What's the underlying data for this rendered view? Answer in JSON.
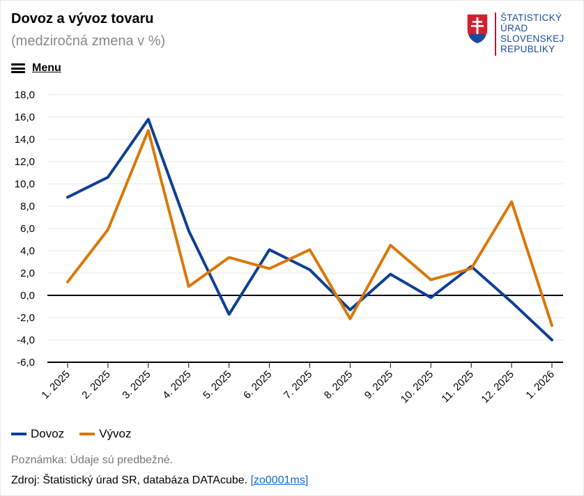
{
  "header": {
    "title": "Dovoz a vývoz tovaru",
    "subtitle": "(medziročná zmena v %)"
  },
  "logo": {
    "line1": "ŠTATISTICKÝ",
    "line2": "ÚRAD",
    "line3": "SLOVENSKEJ",
    "line4": "REPUBLIKY"
  },
  "menu": {
    "label": "Menu"
  },
  "colors": {
    "dovoz": "#0d3f94",
    "vyvoz": "#d97708",
    "grid": "#e6e6e6",
    "axis": "#000000"
  },
  "chart_data": {
    "type": "line",
    "title": "Dovoz a vývoz tovaru",
    "subtitle": "(medziročná zmena v %)",
    "categories": [
      "1. 2025",
      "2. 2025",
      "3. 2025",
      "4. 2025",
      "5. 2025",
      "6. 2025",
      "7. 2025",
      "8. 2025",
      "9. 2025",
      "10. 2025",
      "11. 2025",
      "12. 2025",
      "1. 2026"
    ],
    "series": [
      {
        "name": "Dovoz",
        "values": [
          8.8,
          10.6,
          15.8,
          5.8,
          -1.7,
          4.1,
          2.3,
          -1.3,
          1.9,
          -0.2,
          2.6,
          -0.6,
          -4.0
        ]
      },
      {
        "name": "Vývoz",
        "values": [
          1.2,
          5.9,
          14.8,
          0.8,
          3.4,
          2.4,
          4.1,
          -2.1,
          4.5,
          1.4,
          2.4,
          8.4,
          -2.7
        ]
      }
    ],
    "ylim": [
      -6,
      18
    ],
    "yticks": [
      -6,
      -4,
      -2,
      0,
      2,
      4,
      6,
      8,
      10,
      12,
      14,
      16,
      18
    ],
    "ytick_labels": [
      "-6,0",
      "-4,0",
      "-2,0",
      "0,0",
      "2,0",
      "4,0",
      "6,0",
      "8,0",
      "10,0",
      "12,0",
      "14,0",
      "16,0",
      "18,0"
    ],
    "grid": true,
    "legend": "bottom-left"
  },
  "footer": {
    "note": "Poznámka: Údaje sú predbežné.",
    "source_text": "Zdroj: Štatistický úrad SR, databáza DATAcube.",
    "source_link": "[zo0001ms]"
  }
}
